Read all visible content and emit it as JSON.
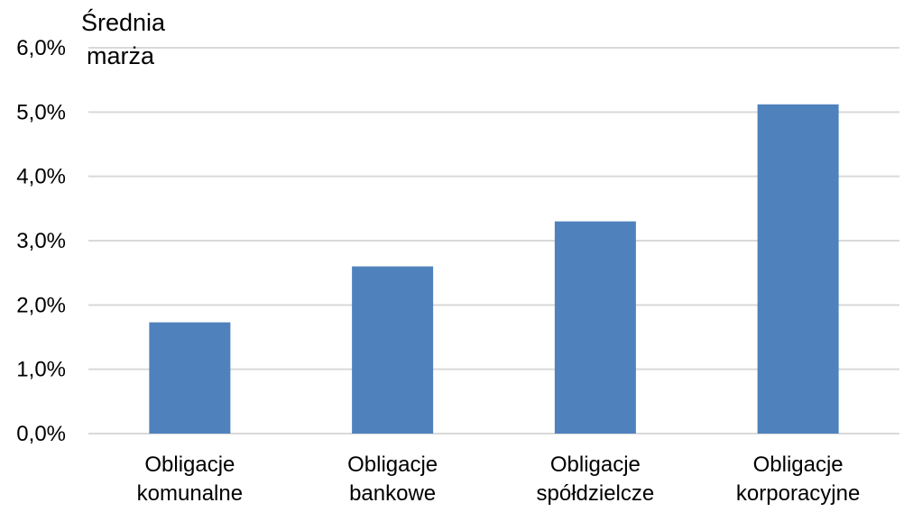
{
  "chart_data": {
    "type": "bar",
    "ylabel_lines": [
      "Średnia",
      "marża"
    ],
    "categories": [
      [
        "Obligacje",
        "komunalne"
      ],
      [
        "Obligacje",
        "bankowe"
      ],
      [
        "Obligacje",
        "spółdzielcze"
      ],
      [
        "Obligacje",
        "korporacyjne"
      ]
    ],
    "values": [
      1.73,
      2.6,
      3.3,
      5.12
    ],
    "ylim": [
      0,
      6
    ],
    "yticks": [
      "0,0%",
      "1,0%",
      "2,0%",
      "3,0%",
      "4,0%",
      "5,0%",
      "6,0%"
    ],
    "grid": true,
    "bar_color": "#4f81bd",
    "grid_color": "#d9d9d9"
  }
}
